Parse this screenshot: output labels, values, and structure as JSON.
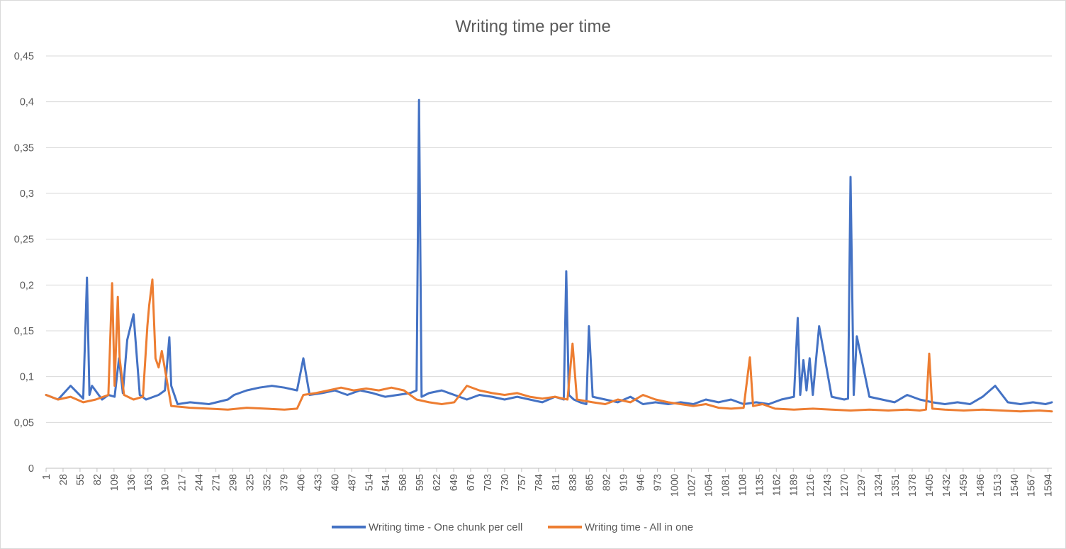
{
  "chart_data": {
    "type": "line",
    "title": "Writing time per time",
    "xlabel": "",
    "ylabel": "",
    "ylim": [
      0,
      0.45
    ],
    "y_ticks": [
      "0",
      "0,05",
      "0,1",
      "0,15",
      "0,2",
      "0,25",
      "0,3",
      "0,35",
      "0,4",
      "0,45"
    ],
    "x_tick_labels": [
      "1",
      "28",
      "55",
      "82",
      "109",
      "136",
      "163",
      "190",
      "217",
      "244",
      "271",
      "298",
      "325",
      "352",
      "379",
      "406",
      "433",
      "460",
      "487",
      "514",
      "541",
      "568",
      "595",
      "622",
      "649",
      "676",
      "703",
      "730",
      "757",
      "784",
      "811",
      "838",
      "865",
      "892",
      "919",
      "946",
      "973",
      "1000",
      "1027",
      "1054",
      "1081",
      "1108",
      "1135",
      "1162",
      "1189",
      "1216",
      "1243",
      "1270",
      "1297",
      "1324",
      "1351",
      "1378",
      "1405",
      "1432",
      "1459",
      "1486",
      "1513",
      "1540",
      "1567",
      "1594"
    ],
    "x_range": [
      1,
      1600
    ],
    "grid": "horizontal",
    "legend_position": "bottom",
    "series": [
      {
        "name": "Writing time - One chunk per cell",
        "color": "#4472C4",
        "x": [
          1,
          20,
          40,
          60,
          66,
          70,
          74,
          90,
          100,
          110,
          117,
          123,
          130,
          140,
          150,
          160,
          180,
          190,
          197,
          200,
          210,
          230,
          260,
          290,
          300,
          320,
          340,
          360,
          380,
          400,
          410,
          420,
          440,
          460,
          480,
          500,
          520,
          540,
          560,
          580,
          590,
          594,
          598,
          610,
          630,
          650,
          670,
          690,
          710,
          730,
          750,
          770,
          790,
          810,
          824,
          828,
          832,
          840,
          850,
          860,
          864,
          870,
          890,
          910,
          930,
          950,
          970,
          990,
          1010,
          1030,
          1050,
          1070,
          1090,
          1110,
          1130,
          1150,
          1170,
          1190,
          1196,
          1200,
          1205,
          1210,
          1215,
          1220,
          1230,
          1250,
          1270,
          1276,
          1280,
          1285,
          1290,
          1310,
          1330,
          1350,
          1370,
          1390,
          1410,
          1430,
          1450,
          1470,
          1490,
          1510,
          1530,
          1550,
          1570,
          1590,
          1600
        ],
        "y": [
          0.08,
          0.075,
          0.09,
          0.076,
          0.208,
          0.08,
          0.09,
          0.075,
          0.08,
          0.078,
          0.12,
          0.082,
          0.14,
          0.168,
          0.08,
          0.075,
          0.08,
          0.085,
          0.143,
          0.09,
          0.07,
          0.072,
          0.07,
          0.075,
          0.08,
          0.085,
          0.088,
          0.09,
          0.088,
          0.085,
          0.12,
          0.08,
          0.082,
          0.085,
          0.08,
          0.085,
          0.082,
          0.078,
          0.08,
          0.082,
          0.085,
          0.402,
          0.078,
          0.082,
          0.085,
          0.08,
          0.075,
          0.08,
          0.078,
          0.075,
          0.078,
          0.075,
          0.072,
          0.078,
          0.075,
          0.215,
          0.08,
          0.075,
          0.072,
          0.07,
          0.155,
          0.078,
          0.075,
          0.072,
          0.078,
          0.07,
          0.072,
          0.07,
          0.072,
          0.07,
          0.075,
          0.072,
          0.075,
          0.07,
          0.072,
          0.07,
          0.075,
          0.078,
          0.164,
          0.08,
          0.118,
          0.085,
          0.12,
          0.08,
          0.155,
          0.078,
          0.075,
          0.076,
          0.318,
          0.08,
          0.144,
          0.078,
          0.075,
          0.072,
          0.08,
          0.075,
          0.072,
          0.07,
          0.072,
          0.07,
          0.078,
          0.09,
          0.072,
          0.07,
          0.072,
          0.07,
          0.072
        ]
      },
      {
        "name": "Writing time - All in one",
        "color": "#ED7D31",
        "x": [
          1,
          20,
          40,
          60,
          80,
          100,
          106,
          110,
          115,
          118,
          125,
          140,
          155,
          162,
          165,
          170,
          175,
          180,
          185,
          200,
          230,
          260,
          290,
          320,
          350,
          380,
          400,
          410,
          430,
          450,
          470,
          490,
          510,
          530,
          550,
          570,
          590,
          610,
          630,
          650,
          670,
          690,
          710,
          730,
          750,
          770,
          790,
          810,
          830,
          838,
          845,
          870,
          890,
          910,
          930,
          950,
          970,
          990,
          1010,
          1030,
          1050,
          1070,
          1090,
          1110,
          1120,
          1125,
          1140,
          1160,
          1190,
          1220,
          1250,
          1280,
          1310,
          1340,
          1370,
          1390,
          1400,
          1405,
          1410,
          1430,
          1460,
          1490,
          1520,
          1550,
          1580,
          1600
        ],
        "y": [
          0.08,
          0.075,
          0.078,
          0.072,
          0.075,
          0.08,
          0.202,
          0.09,
          0.187,
          0.12,
          0.08,
          0.075,
          0.078,
          0.155,
          0.178,
          0.206,
          0.12,
          0.11,
          0.128,
          0.068,
          0.066,
          0.065,
          0.064,
          0.066,
          0.065,
          0.064,
          0.065,
          0.08,
          0.082,
          0.085,
          0.088,
          0.085,
          0.087,
          0.085,
          0.088,
          0.085,
          0.075,
          0.072,
          0.07,
          0.072,
          0.09,
          0.085,
          0.082,
          0.08,
          0.082,
          0.078,
          0.076,
          0.078,
          0.075,
          0.136,
          0.075,
          0.072,
          0.07,
          0.075,
          0.072,
          0.08,
          0.075,
          0.072,
          0.07,
          0.068,
          0.07,
          0.066,
          0.065,
          0.066,
          0.121,
          0.068,
          0.07,
          0.065,
          0.064,
          0.065,
          0.064,
          0.063,
          0.064,
          0.063,
          0.064,
          0.063,
          0.064,
          0.125,
          0.065,
          0.064,
          0.063,
          0.064,
          0.063,
          0.062,
          0.063,
          0.062
        ]
      }
    ]
  }
}
